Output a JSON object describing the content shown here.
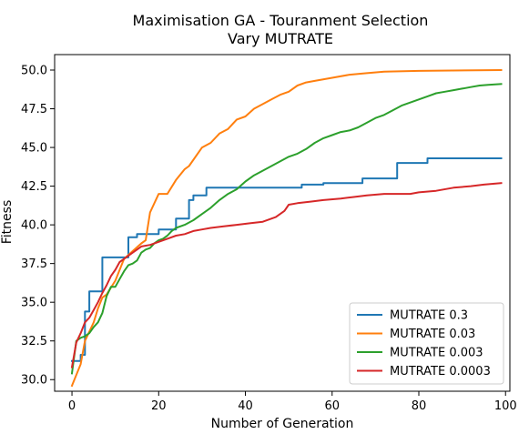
{
  "chart_data": {
    "type": "line",
    "title": "Maximisation GA - Touranment Selection",
    "subtitle": "Vary MUTRATE",
    "xlabel": "Number of Generation",
    "ylabel": "Fitness",
    "xlim": [
      -4,
      101
    ],
    "ylim": [
      29.25,
      51.0
    ],
    "xticks": [
      0,
      20,
      40,
      60,
      80,
      100
    ],
    "yticks": [
      30.0,
      32.5,
      35.0,
      37.5,
      40.0,
      42.5,
      45.0,
      47.5,
      50.0
    ],
    "xtick_labels": [
      "0",
      "20",
      "40",
      "60",
      "80",
      "100"
    ],
    "ytick_labels": [
      "30.0",
      "32.5",
      "35.0",
      "37.5",
      "40.0",
      "42.5",
      "45.0",
      "47.5",
      "50.0"
    ],
    "grid": false,
    "legend_position": "lower-right",
    "series": [
      {
        "name": "MUTRATE 0.3",
        "color": "#1f77b4",
        "step": true,
        "points": [
          [
            0,
            31.2
          ],
          [
            1,
            31.2
          ],
          [
            2,
            31.6
          ],
          [
            3,
            34.4
          ],
          [
            4,
            35.7
          ],
          [
            7,
            37.9
          ],
          [
            12,
            37.9
          ],
          [
            13,
            39.2
          ],
          [
            15,
            39.4
          ],
          [
            19,
            39.4
          ],
          [
            20,
            39.7
          ],
          [
            23,
            39.7
          ],
          [
            24,
            40.4
          ],
          [
            26,
            40.4
          ],
          [
            27,
            41.6
          ],
          [
            28,
            41.9
          ],
          [
            30,
            41.9
          ],
          [
            31,
            42.4
          ],
          [
            51,
            42.4
          ],
          [
            53,
            42.6
          ],
          [
            57,
            42.6
          ],
          [
            58,
            42.7
          ],
          [
            66,
            42.7
          ],
          [
            67,
            43.0
          ],
          [
            74,
            43.0
          ],
          [
            75,
            44.0
          ],
          [
            81,
            44.0
          ],
          [
            82,
            44.3
          ],
          [
            99,
            44.3
          ]
        ]
      },
      {
        "name": "MUTRATE 0.03",
        "color": "#ff7f0e",
        "step": false,
        "points": [
          [
            0,
            29.6
          ],
          [
            2,
            31.0
          ],
          [
            3,
            32.5
          ],
          [
            5,
            33.7
          ],
          [
            6,
            34.6
          ],
          [
            7,
            35.3
          ],
          [
            8,
            35.5
          ],
          [
            10,
            36.4
          ],
          [
            12,
            37.8
          ],
          [
            14,
            38.3
          ],
          [
            16,
            38.8
          ],
          [
            17,
            39.0
          ],
          [
            18,
            40.8
          ],
          [
            20,
            42.0
          ],
          [
            22,
            42.0
          ],
          [
            24,
            42.9
          ],
          [
            26,
            43.6
          ],
          [
            27,
            43.8
          ],
          [
            30,
            45.0
          ],
          [
            32,
            45.3
          ],
          [
            34,
            45.9
          ],
          [
            36,
            46.2
          ],
          [
            38,
            46.8
          ],
          [
            40,
            47.0
          ],
          [
            42,
            47.5
          ],
          [
            44,
            47.8
          ],
          [
            46,
            48.1
          ],
          [
            48,
            48.4
          ],
          [
            50,
            48.6
          ],
          [
            52,
            49.0
          ],
          [
            54,
            49.2
          ],
          [
            56,
            49.3
          ],
          [
            60,
            49.5
          ],
          [
            64,
            49.7
          ],
          [
            68,
            49.8
          ],
          [
            72,
            49.9
          ],
          [
            80,
            49.95
          ],
          [
            99,
            50.0
          ]
        ]
      },
      {
        "name": "MUTRATE 0.003",
        "color": "#2ca02c",
        "step": false,
        "points": [
          [
            0,
            30.4
          ],
          [
            1,
            32.5
          ],
          [
            2,
            32.7
          ],
          [
            3,
            32.8
          ],
          [
            4,
            33.0
          ],
          [
            5,
            33.4
          ],
          [
            6,
            33.7
          ],
          [
            7,
            34.3
          ],
          [
            8,
            35.4
          ],
          [
            9,
            36.0
          ],
          [
            10,
            36.0
          ],
          [
            11,
            36.5
          ],
          [
            12,
            37.0
          ],
          [
            13,
            37.4
          ],
          [
            14,
            37.5
          ],
          [
            15,
            37.7
          ],
          [
            16,
            38.2
          ],
          [
            17,
            38.4
          ],
          [
            18,
            38.5
          ],
          [
            19,
            38.8
          ],
          [
            20,
            39.0
          ],
          [
            21,
            39.1
          ],
          [
            22,
            39.3
          ],
          [
            23,
            39.6
          ],
          [
            24,
            39.8
          ],
          [
            26,
            40.0
          ],
          [
            28,
            40.3
          ],
          [
            30,
            40.7
          ],
          [
            32,
            41.1
          ],
          [
            34,
            41.6
          ],
          [
            36,
            42.0
          ],
          [
            38,
            42.3
          ],
          [
            40,
            42.8
          ],
          [
            42,
            43.2
          ],
          [
            44,
            43.5
          ],
          [
            46,
            43.8
          ],
          [
            48,
            44.1
          ],
          [
            50,
            44.4
          ],
          [
            52,
            44.6
          ],
          [
            54,
            44.9
          ],
          [
            56,
            45.3
          ],
          [
            58,
            45.6
          ],
          [
            60,
            45.8
          ],
          [
            62,
            46.0
          ],
          [
            64,
            46.1
          ],
          [
            66,
            46.3
          ],
          [
            68,
            46.6
          ],
          [
            70,
            46.9
          ],
          [
            72,
            47.1
          ],
          [
            74,
            47.4
          ],
          [
            76,
            47.7
          ],
          [
            78,
            47.9
          ],
          [
            80,
            48.1
          ],
          [
            82,
            48.3
          ],
          [
            84,
            48.5
          ],
          [
            86,
            48.6
          ],
          [
            88,
            48.7
          ],
          [
            90,
            48.8
          ],
          [
            92,
            48.9
          ],
          [
            94,
            49.0
          ],
          [
            96,
            49.05
          ],
          [
            99,
            49.1
          ]
        ]
      },
      {
        "name": "MUTRATE 0.0003",
        "color": "#d62728",
        "step": false,
        "points": [
          [
            0,
            30.8
          ],
          [
            1,
            32.4
          ],
          [
            2,
            33.0
          ],
          [
            3,
            33.7
          ],
          [
            4,
            34.0
          ],
          [
            5,
            34.5
          ],
          [
            6,
            35.0
          ],
          [
            7,
            35.6
          ],
          [
            8,
            36.1
          ],
          [
            9,
            36.7
          ],
          [
            10,
            37.1
          ],
          [
            11,
            37.6
          ],
          [
            12,
            37.8
          ],
          [
            13,
            38.0
          ],
          [
            14,
            38.2
          ],
          [
            15,
            38.4
          ],
          [
            16,
            38.6
          ],
          [
            18,
            38.7
          ],
          [
            20,
            38.9
          ],
          [
            22,
            39.1
          ],
          [
            24,
            39.3
          ],
          [
            26,
            39.4
          ],
          [
            28,
            39.6
          ],
          [
            30,
            39.7
          ],
          [
            32,
            39.8
          ],
          [
            35,
            39.9
          ],
          [
            38,
            40.0
          ],
          [
            41,
            40.1
          ],
          [
            44,
            40.2
          ],
          [
            47,
            40.5
          ],
          [
            49,
            40.9
          ],
          [
            50,
            41.3
          ],
          [
            52,
            41.4
          ],
          [
            55,
            41.5
          ],
          [
            58,
            41.6
          ],
          [
            62,
            41.7
          ],
          [
            65,
            41.8
          ],
          [
            68,
            41.9
          ],
          [
            72,
            42.0
          ],
          [
            78,
            42.0
          ],
          [
            80,
            42.1
          ],
          [
            84,
            42.2
          ],
          [
            88,
            42.4
          ],
          [
            92,
            42.5
          ],
          [
            95,
            42.6
          ],
          [
            99,
            42.7
          ]
        ]
      }
    ]
  }
}
